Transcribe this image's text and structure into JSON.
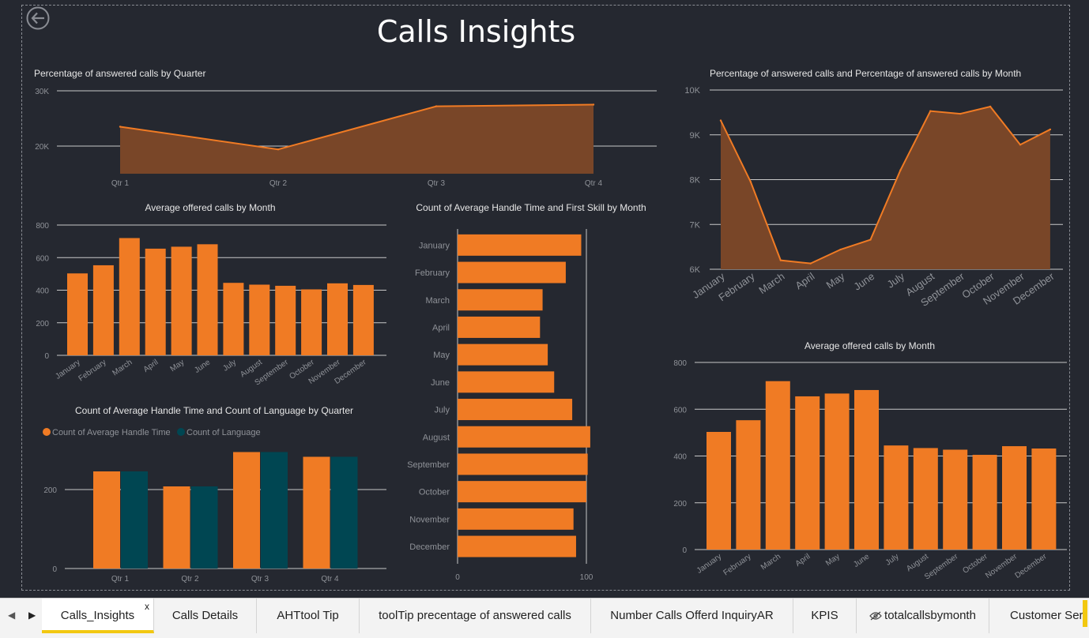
{
  "page": {
    "title": "Calls Insights"
  },
  "icons": {
    "back": "back-arrow-icon",
    "prev": "chevron-left-icon",
    "next": "chevron-right-icon",
    "hidden": "eye-slash-icon"
  },
  "colors": {
    "orange": "#f07b24",
    "orange_area": "#794628",
    "teal": "#004652",
    "background": "#252830"
  },
  "chart_data": [
    {
      "id": "quarter_area",
      "type": "area",
      "title": "Percentage of answered calls by Quarter",
      "categories": [
        "Qtr 1",
        "Qtr 2",
        "Qtr 3",
        "Qtr 4"
      ],
      "values": [
        23500,
        19400,
        27200,
        27500
      ],
      "ylim": [
        15000,
        30000
      ],
      "yticks": [
        20000,
        30000
      ],
      "ytick_labels": [
        "20K",
        "30K"
      ]
    },
    {
      "id": "month_bar_left",
      "type": "bar",
      "title": "Average offered calls  by Month",
      "categories": [
        "January",
        "February",
        "March",
        "April",
        "May",
        "June",
        "July",
        "August",
        "September",
        "October",
        "November",
        "December"
      ],
      "values": [
        503,
        553,
        720,
        655,
        667,
        682,
        445,
        434,
        427,
        405,
        442,
        432
      ],
      "ylim": [
        0,
        800
      ],
      "yticks": [
        0,
        200,
        400,
        600,
        800
      ]
    },
    {
      "id": "quarter_grouped",
      "type": "bar",
      "title": "Count of Average Handle Time  and Count of Language by Quarter",
      "legend": {
        "position": "top-left"
      },
      "categories": [
        "Qtr 1",
        "Qtr 2",
        "Qtr 3",
        "Qtr 4"
      ],
      "series": [
        {
          "name": "Count of Average Handle Time",
          "values": [
            246,
            208,
            295,
            283
          ]
        },
        {
          "name": "Count of Language",
          "values": [
            246,
            208,
            295,
            283
          ]
        }
      ],
      "ylim": [
        0,
        360
      ],
      "yticks": [
        0,
        200
      ]
    },
    {
      "id": "month_hbar",
      "type": "bar",
      "orientation": "horizontal",
      "title": "Count of Average Handle Time  and First Skill by Month",
      "categories": [
        "January",
        "February",
        "March",
        "April",
        "May",
        "June",
        "July",
        "August",
        "September",
        "October",
        "November",
        "December"
      ],
      "values": [
        96,
        84,
        66,
        64,
        70,
        75,
        89,
        103,
        101,
        100,
        90,
        92
      ],
      "xlim": [
        0,
        104
      ],
      "xticks": [
        0,
        100
      ]
    },
    {
      "id": "month_area",
      "type": "area",
      "title": "Percentage of answered calls and Percentage of answered calls by Month",
      "categories": [
        "January",
        "February",
        "March",
        "April",
        "May",
        "June",
        "July",
        "August",
        "September",
        "October",
        "November",
        "December"
      ],
      "values": [
        9320,
        7950,
        6200,
        6130,
        6440,
        6660,
        8210,
        9530,
        9470,
        9630,
        8780,
        9120
      ],
      "ylim": [
        6000,
        10000
      ],
      "yticks": [
        6000,
        7000,
        8000,
        9000,
        10000
      ],
      "ytick_labels": [
        "6K",
        "7K",
        "8K",
        "9K",
        "10K"
      ]
    },
    {
      "id": "month_bar_right",
      "type": "bar",
      "title": "Average offered calls  by Month",
      "categories": [
        "January",
        "February",
        "March",
        "April",
        "May",
        "June",
        "July",
        "August",
        "September",
        "October",
        "November",
        "December"
      ],
      "values": [
        503,
        553,
        720,
        655,
        667,
        682,
        445,
        434,
        427,
        405,
        442,
        432
      ],
      "ylim": [
        0,
        800
      ],
      "yticks": [
        0,
        200,
        400,
        600,
        800
      ]
    }
  ],
  "tabs": [
    {
      "label": "Calls_Insights",
      "active": true,
      "close": "x"
    },
    {
      "label": "Calls Details"
    },
    {
      "label": "AHTtool Tip"
    },
    {
      "label": "toolTip precentage of answered calls"
    },
    {
      "label": "Number Calls Offerd InquiryAR"
    },
    {
      "label": "KPIS"
    },
    {
      "label": "totalcallsbymonth",
      "hidden": true
    },
    {
      "label": "Customer Serv"
    }
  ]
}
